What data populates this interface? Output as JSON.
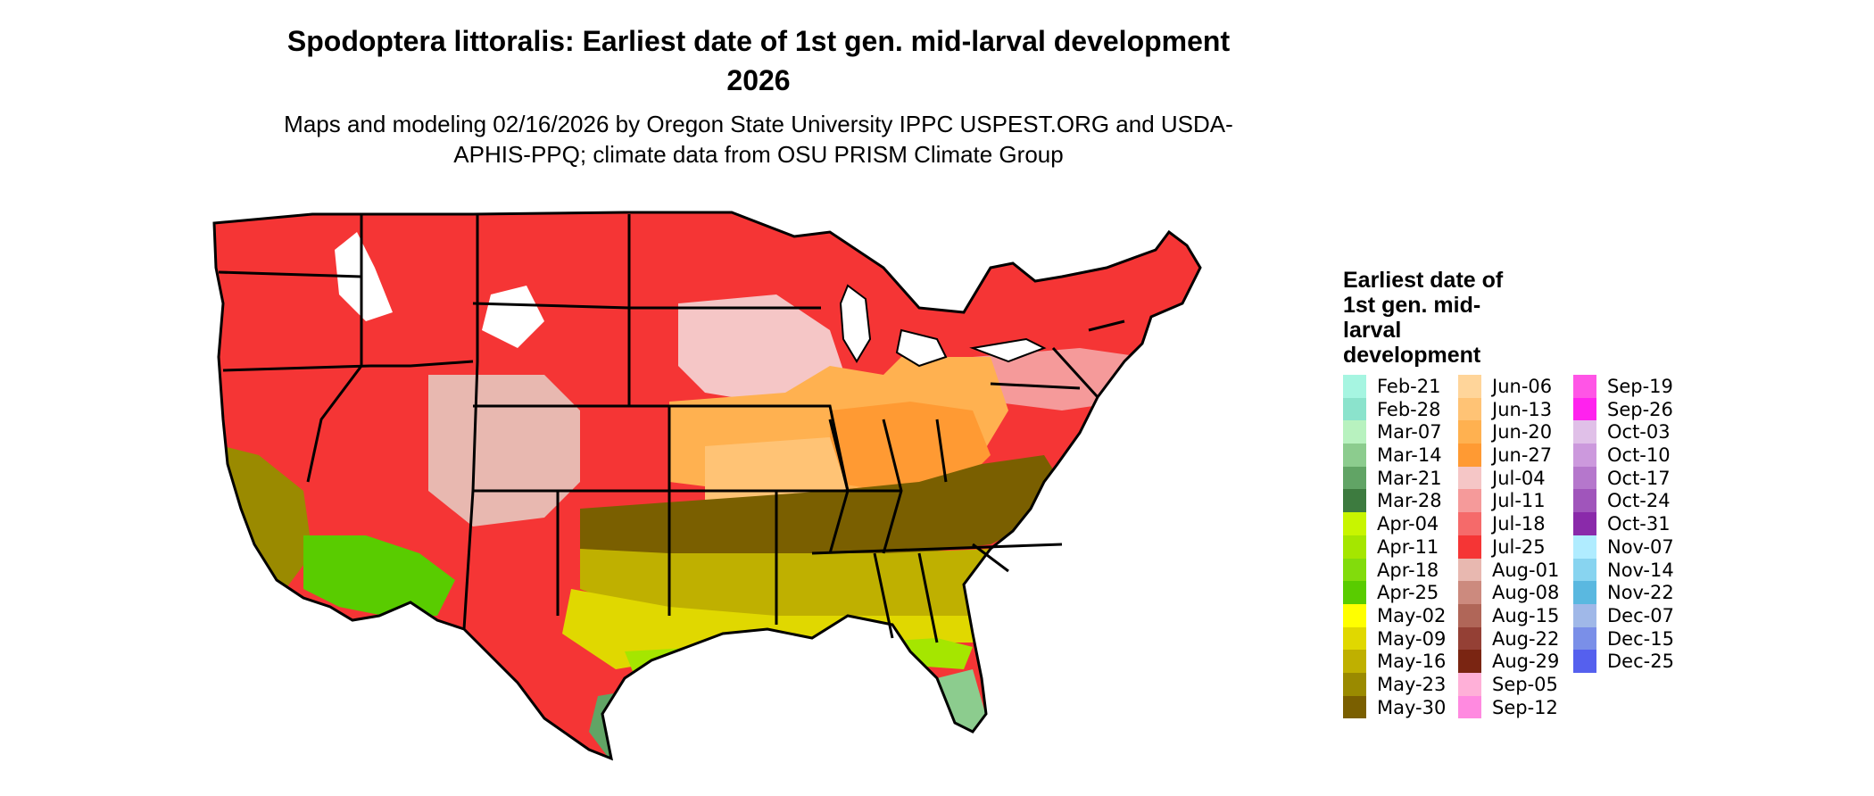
{
  "figure": {
    "title": "Spodoptera littoralis: Earliest date of 1st gen. mid-larval development 2026",
    "subtitle": "Maps and modeling 02/16/2026 by Oregon State University IPPC USPEST.ORG and USDA-APHIS-PPQ; climate data from OSU PRISM Climate Group"
  },
  "legend": {
    "title": "Earliest date of 1st gen. mid-larval development",
    "columns": [
      [
        {
          "label": "Feb-21",
          "color": "#a6f5e1"
        },
        {
          "label": "Feb-28",
          "color": "#8be3cc"
        },
        {
          "label": "Mar-07",
          "color": "#b8f2bf"
        },
        {
          "label": "Mar-14",
          "color": "#8ccc8e"
        },
        {
          "label": "Mar-21",
          "color": "#61a465"
        },
        {
          "label": "Mar-28",
          "color": "#3d7b3f"
        },
        {
          "label": "Apr-04",
          "color": "#c8f500"
        },
        {
          "label": "Apr-11",
          "color": "#a5e600"
        },
        {
          "label": "Apr-18",
          "color": "#82dc0c"
        },
        {
          "label": "Apr-25",
          "color": "#59cc00"
        },
        {
          "label": "May-02",
          "color": "#ffff00"
        },
        {
          "label": "May-09",
          "color": "#e0d800"
        },
        {
          "label": "May-16",
          "color": "#bfb000"
        },
        {
          "label": "May-23",
          "color": "#9a8a00"
        },
        {
          "label": "May-30",
          "color": "#7a5f00"
        }
      ],
      [
        {
          "label": "Jun-06",
          "color": "#ffd59a"
        },
        {
          "label": "Jun-13",
          "color": "#ffc375"
        },
        {
          "label": "Jun-20",
          "color": "#ffb150"
        },
        {
          "label": "Jun-27",
          "color": "#ff9a33"
        },
        {
          "label": "Jul-04",
          "color": "#f5c6c6"
        },
        {
          "label": "Jul-11",
          "color": "#f59a9a"
        },
        {
          "label": "Jul-18",
          "color": "#f56a6a"
        },
        {
          "label": "Jul-25",
          "color": "#f53535"
        },
        {
          "label": "Aug-01",
          "color": "#e8b8b0"
        },
        {
          "label": "Aug-08",
          "color": "#cc8a7e"
        },
        {
          "label": "Aug-15",
          "color": "#b06658"
        },
        {
          "label": "Aug-22",
          "color": "#944035"
        },
        {
          "label": "Aug-29",
          "color": "#7a2512"
        },
        {
          "label": "Sep-05",
          "color": "#ffb0d8"
        },
        {
          "label": "Sep-12",
          "color": "#ff8ae0"
        }
      ],
      [
        {
          "label": "Sep-19",
          "color": "#ff55e6"
        },
        {
          "label": "Sep-26",
          "color": "#ff22ee"
        },
        {
          "label": "Oct-03",
          "color": "#e0c0e8"
        },
        {
          "label": "Oct-10",
          "color": "#cc99dd"
        },
        {
          "label": "Oct-17",
          "color": "#b577cc"
        },
        {
          "label": "Oct-24",
          "color": "#a055bb"
        },
        {
          "label": "Oct-31",
          "color": "#8a2aaa"
        },
        {
          "label": "Nov-07",
          "color": "#b0ecff"
        },
        {
          "label": "Nov-14",
          "color": "#88d4f0"
        },
        {
          "label": "Nov-22",
          "color": "#5ab8e0"
        },
        {
          "label": "Dec-07",
          "color": "#a0b8e8"
        },
        {
          "label": "Dec-15",
          "color": "#7a8fe8"
        },
        {
          "label": "Dec-25",
          "color": "#5560ee"
        }
      ]
    ]
  },
  "map_zones": [
    {
      "name": "north-zone",
      "color": "#f53535"
    },
    {
      "name": "northern-plains-zone",
      "color": "#f5c6c6"
    },
    {
      "name": "great-lakes-zone",
      "color": "#f59a9a"
    },
    {
      "name": "central-zone",
      "color": "#ffb150"
    },
    {
      "name": "midwest-zone",
      "color": "#ff9a33"
    },
    {
      "name": "kansas-missouri-zone",
      "color": "#ffc375"
    },
    {
      "name": "mid-south-zone",
      "color": "#7a5f00"
    },
    {
      "name": "south-zone",
      "color": "#bfb000"
    },
    {
      "name": "gulf-zone",
      "color": "#e0d800"
    },
    {
      "name": "coastal-zone",
      "color": "#a5e600"
    },
    {
      "name": "texas-gulf-coast-zone",
      "color": "#61a465"
    },
    {
      "name": "south-florida-zone",
      "color": "#8ccc8e"
    },
    {
      "name": "california-central-zone",
      "color": "#9a8a00"
    },
    {
      "name": "southwest-desert-zone",
      "color": "#59cc00"
    },
    {
      "name": "rocky-mountain-zone",
      "color": "#e8b8b0"
    },
    {
      "name": "mountain-snow-zone",
      "color": "#ffffff"
    }
  ]
}
